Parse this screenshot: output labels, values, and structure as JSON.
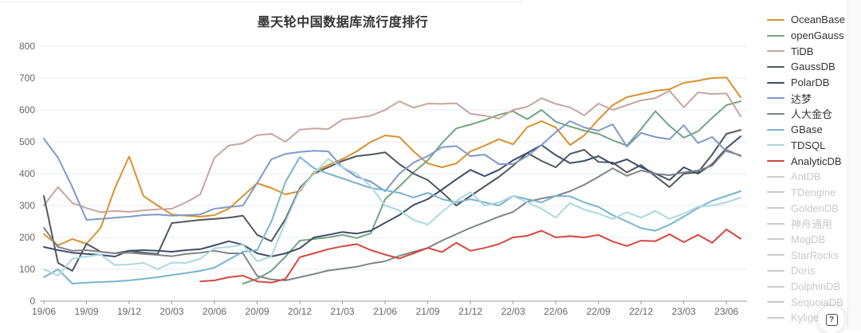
{
  "ui": {
    "help_icon": "?"
  },
  "chart_data": {
    "type": "line",
    "title": "墨天轮中国数据库流行度排行",
    "xlabel": "",
    "ylabel": "",
    "ylim": [
      0,
      800
    ],
    "y_tick_step": 100,
    "grid": true,
    "legend_position": "right",
    "x_tick_every": 3,
    "x": [
      "19/06",
      "19/07",
      "19/08",
      "19/09",
      "19/10",
      "19/11",
      "19/12",
      "20/01",
      "20/02",
      "20/03",
      "20/04",
      "20/05",
      "20/06",
      "20/07",
      "20/08",
      "20/09",
      "20/10",
      "20/11",
      "20/12",
      "21/01",
      "21/02",
      "21/03",
      "21/04",
      "21/05",
      "21/06",
      "21/07",
      "21/08",
      "21/09",
      "21/10",
      "21/11",
      "21/12",
      "22/01",
      "22/02",
      "22/03",
      "22/04",
      "22/05",
      "22/06",
      "22/07",
      "22/08",
      "22/09",
      "22/10",
      "22/11",
      "22/12",
      "23/01",
      "23/02",
      "23/03",
      "23/04",
      "23/05",
      "23/06",
      "23/07"
    ],
    "series": [
      {
        "name": "OceanBase",
        "color": "#D9912C",
        "values": [
          210,
          175,
          195,
          180,
          230,
          355,
          454,
          330,
          300,
          272,
          268,
          265,
          270,
          290,
          330,
          370,
          355,
          335,
          345,
          405,
          427,
          446,
          470,
          500,
          520,
          515,
          470,
          432,
          420,
          432,
          470,
          488,
          508,
          492,
          546,
          565,
          545,
          490,
          520,
          570,
          615,
          640,
          650,
          660,
          665,
          685,
          692,
          700,
          702,
          640
        ]
      },
      {
        "name": "openGauss",
        "color": "#72A580",
        "values": [
          null,
          null,
          null,
          null,
          null,
          null,
          null,
          null,
          null,
          null,
          null,
          null,
          null,
          null,
          55,
          70,
          95,
          140,
          190,
          195,
          200,
          208,
          198,
          213,
          320,
          360,
          404,
          442,
          496,
          542,
          554,
          568,
          585,
          596,
          571,
          600,
          563,
          548,
          535,
          525,
          505,
          488,
          540,
          596,
          550,
          513,
          533,
          575,
          615,
          627
        ]
      },
      {
        "name": "TiDB",
        "color": "#C7A59E",
        "values": [
          300,
          358,
          308,
          292,
          279,
          283,
          280,
          285,
          288,
          290,
          310,
          335,
          450,
          488,
          495,
          521,
          525,
          500,
          538,
          542,
          540,
          570,
          575,
          582,
          600,
          627,
          607,
          620,
          619,
          621,
          588,
          582,
          573,
          600,
          610,
          637,
          619,
          608,
          583,
          620,
          600,
          615,
          630,
          637,
          660,
          608,
          655,
          650,
          652,
          580
        ]
      },
      {
        "name": "GaussDB",
        "color": "#52575C",
        "values": [
          330,
          120,
          95,
          180,
          155,
          150,
          158,
          152,
          148,
          245,
          250,
          255,
          258,
          262,
          268,
          208,
          188,
          258,
          355,
          400,
          420,
          440,
          455,
          460,
          467,
          430,
          400,
          380,
          342,
          300,
          330,
          360,
          390,
          425,
          465,
          440,
          420,
          462,
          475,
          437,
          435,
          404,
          427,
          392,
          358,
          400,
          404,
          460,
          525,
          537
        ]
      },
      {
        "name": "PolarDB",
        "color": "#3F4E68",
        "values": [
          170,
          160,
          152,
          148,
          145,
          140,
          158,
          160,
          158,
          155,
          160,
          163,
          175,
          188,
          177,
          150,
          140,
          150,
          166,
          200,
          208,
          217,
          212,
          221,
          246,
          270,
          302,
          320,
          350,
          382,
          412,
          392,
          412,
          442,
          465,
          490,
          458,
          433,
          440,
          455,
          430,
          445,
          420,
          400,
          380,
          420,
          400,
          430,
          480,
          517
        ]
      },
      {
        "name": "达梦",
        "color": "#8099C8",
        "values": [
          510,
          450,
          358,
          255,
          258,
          262,
          265,
          270,
          272,
          268,
          270,
          272,
          290,
          295,
          300,
          371,
          445,
          462,
          468,
          472,
          470,
          420,
          390,
          375,
          345,
          400,
          435,
          455,
          483,
          487,
          455,
          460,
          430,
          430,
          455,
          490,
          530,
          565,
          545,
          535,
          555,
          485,
          528,
          515,
          508,
          552,
          496,
          515,
          470,
          458
        ]
      },
      {
        "name": "人大金仓",
        "color": "#7F8489",
        "values": [
          230,
          170,
          158,
          160,
          155,
          150,
          152,
          148,
          145,
          141,
          148,
          152,
          158,
          150,
          150,
          79,
          68,
          65,
          75,
          85,
          96,
          102,
          108,
          118,
          125,
          142,
          155,
          167,
          190,
          210,
          230,
          247,
          265,
          280,
          312,
          322,
          330,
          345,
          365,
          390,
          417,
          393,
          410,
          400,
          395,
          404,
          410,
          425,
          475,
          455
        ]
      },
      {
        "name": "GBase",
        "color": "#79B4D0",
        "values": [
          75,
          100,
          55,
          58,
          60,
          62,
          65,
          70,
          75,
          82,
          88,
          95,
          105,
          130,
          155,
          160,
          250,
          375,
          452,
          417,
          400,
          385,
          370,
          355,
          348,
          340,
          325,
          340,
          320,
          310,
          320,
          310,
          300,
          330,
          320,
          310,
          330,
          329,
          310,
          296,
          270,
          250,
          229,
          221,
          240,
          265,
          292,
          315,
          330,
          345
        ]
      },
      {
        "name": "TDSQL",
        "color": "#ACD9DF",
        "values": [
          100,
          80,
          133,
          140,
          146,
          113,
          115,
          120,
          100,
          121,
          120,
          133,
          166,
          170,
          177,
          125,
          140,
          250,
          350,
          400,
          446,
          420,
          400,
          360,
          300,
          285,
          255,
          240,
          280,
          315,
          342,
          300,
          310,
          330,
          310,
          290,
          262,
          308,
          287,
          275,
          258,
          279,
          262,
          283,
          258,
          275,
          296,
          300,
          310,
          325
        ]
      },
      {
        "name": "AnalyticDB",
        "color": "#D7473D",
        "values": [
          null,
          null,
          null,
          null,
          null,
          null,
          null,
          null,
          null,
          null,
          null,
          62,
          65,
          75,
          80,
          62,
          58,
          70,
          138,
          150,
          163,
          172,
          179,
          160,
          146,
          134,
          150,
          167,
          154,
          183,
          158,
          167,
          179,
          200,
          205,
          221,
          200,
          204,
          200,
          208,
          187,
          173,
          190,
          188,
          210,
          185,
          208,
          183,
          225,
          196
        ]
      }
    ],
    "disabled_series": [
      "AntDB",
      "TDengine",
      "GoldenDB",
      "神舟通用",
      "MogDB",
      "StarRocks",
      "Doris",
      "DolphinDB",
      "SequoiaDB",
      "Kyligence"
    ],
    "disabled_color": "#cbcbcb"
  }
}
